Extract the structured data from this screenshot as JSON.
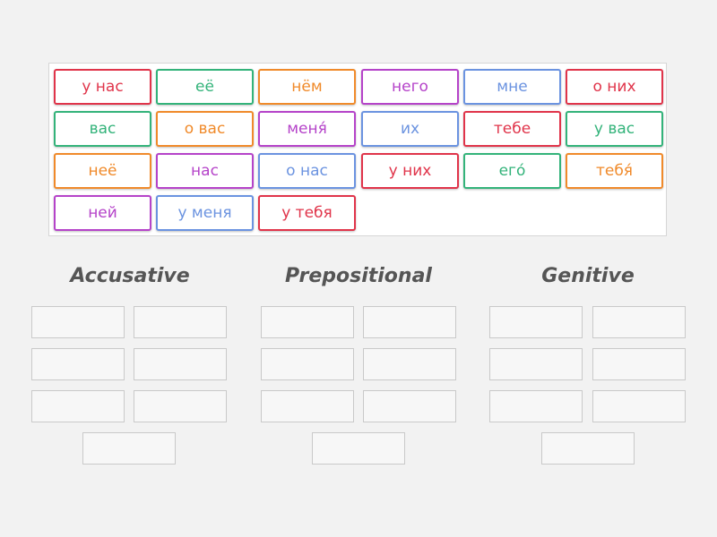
{
  "tiles": [
    {
      "label": "у нас",
      "color": "#e0344a"
    },
    {
      "label": "её",
      "color": "#33b37a"
    },
    {
      "label": "нём",
      "color": "#f08a2a"
    },
    {
      "label": "него",
      "color": "#b543c9"
    },
    {
      "label": "мне",
      "color": "#6b93e0"
    },
    {
      "label": "о них",
      "color": "#e0344a"
    },
    {
      "label": "вас",
      "color": "#33b37a"
    },
    {
      "label": "о вас",
      "color": "#f08a2a"
    },
    {
      "label": "меня́",
      "color": "#b543c9"
    },
    {
      "label": "их",
      "color": "#6b93e0"
    },
    {
      "label": "тебе",
      "color": "#e0344a"
    },
    {
      "label": "у вас",
      "color": "#33b37a"
    },
    {
      "label": "неё",
      "color": "#f08a2a"
    },
    {
      "label": "нас",
      "color": "#b543c9"
    },
    {
      "label": "о нас",
      "color": "#6b93e0"
    },
    {
      "label": "у них",
      "color": "#e0344a"
    },
    {
      "label": "его́",
      "color": "#33b37a"
    },
    {
      "label": "тебя́",
      "color": "#f08a2a"
    },
    {
      "label": "ней",
      "color": "#b543c9"
    },
    {
      "label": "у меня",
      "color": "#6b93e0"
    },
    {
      "label": "у тебя",
      "color": "#e0344a"
    }
  ],
  "groups": [
    {
      "title": "Accusative"
    },
    {
      "title": "Prepositional"
    },
    {
      "title": "Genitive"
    }
  ]
}
